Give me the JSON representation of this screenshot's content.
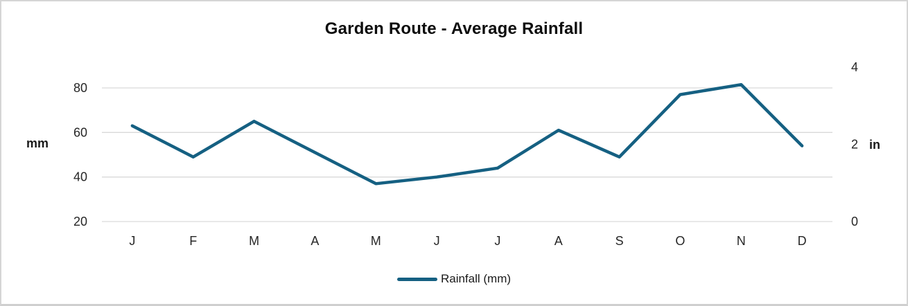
{
  "chart_data": {
    "type": "line",
    "title": "Garden Route - Average Rainfall",
    "categories": [
      "J",
      "F",
      "M",
      "A",
      "M",
      "J",
      "J",
      "A",
      "S",
      "O",
      "N",
      "D"
    ],
    "series": [
      {
        "name": "Rainfall (mm)",
        "values": [
          63,
          49,
          65,
          51,
          37,
          40,
          44,
          61,
          49,
          77,
          81.5,
          54
        ]
      }
    ],
    "left_axis": {
      "label": "mm",
      "ticks": [
        20,
        40,
        60,
        80
      ],
      "range": [
        20,
        90
      ]
    },
    "right_axis": {
      "label": "in",
      "ticks": [
        0,
        2,
        4
      ],
      "range": [
        0,
        4.1
      ]
    },
    "legend": {
      "entries": [
        "Rainfall (mm)"
      ],
      "position": "bottom"
    },
    "grid": true,
    "colors": {
      "line": "#156082",
      "gridline": "#d9d9d9",
      "text": "#262626",
      "border": "#d5d5d5",
      "background": "#ffffff"
    }
  }
}
